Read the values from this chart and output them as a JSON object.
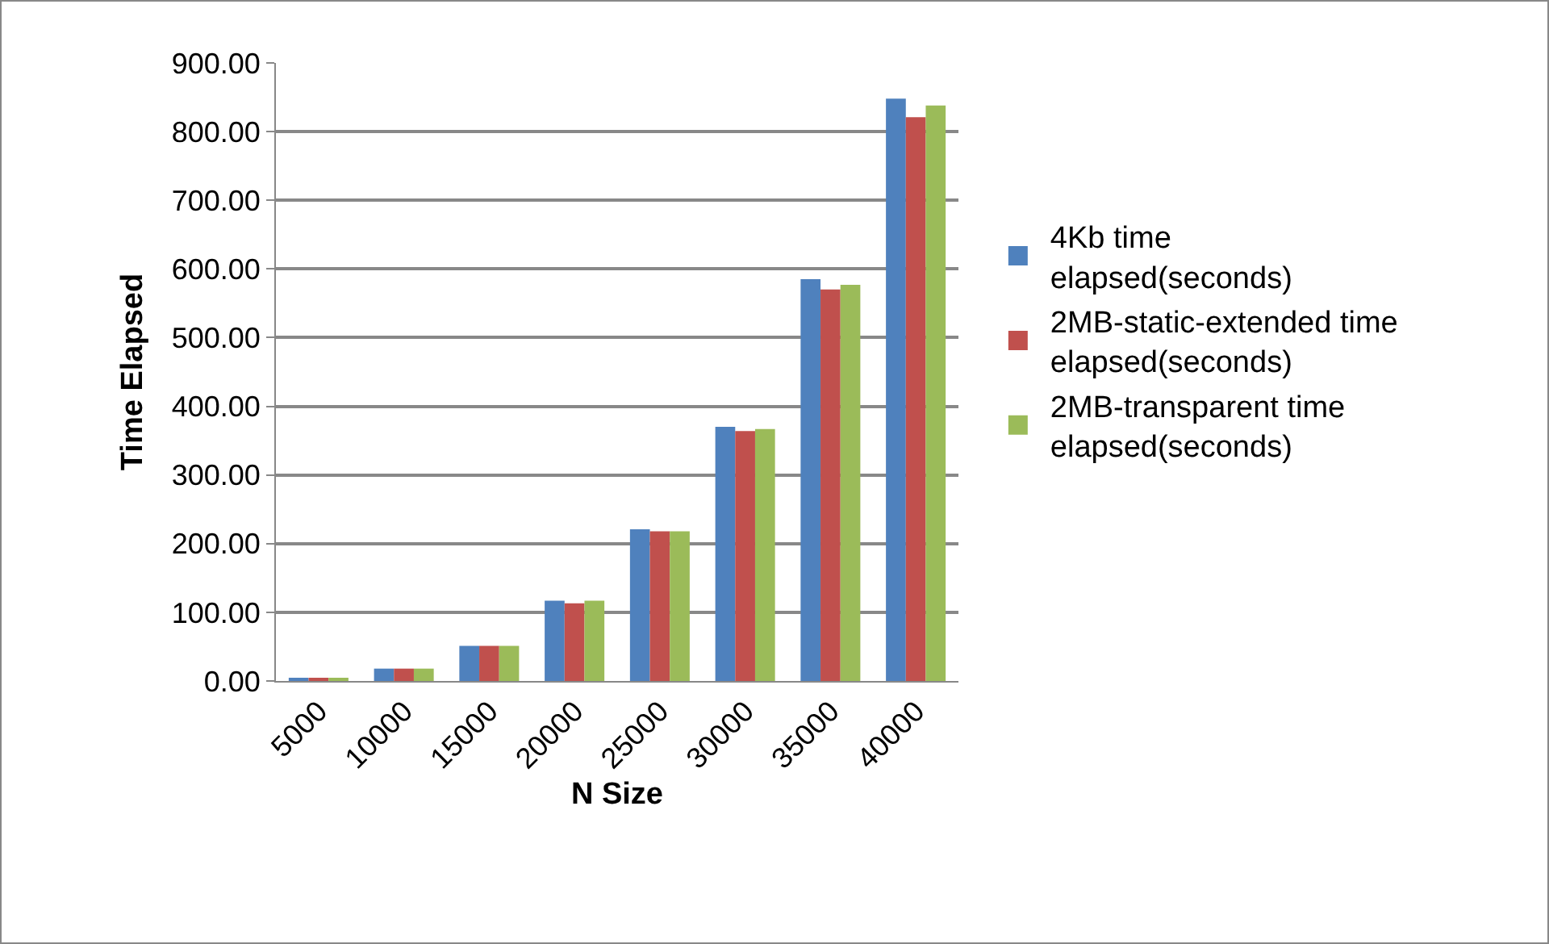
{
  "chart_data": {
    "type": "bar",
    "xlabel": "N Size",
    "ylabel": "Time Elapsed",
    "categories": [
      "5000",
      "10000",
      "15000",
      "20000",
      "25000",
      "30000",
      "35000",
      "40000"
    ],
    "series": [
      {
        "name": "4Kb time elapsed(seconds)",
        "color": "#4f81bd",
        "values": [
          4,
          18,
          51,
          117,
          221,
          370,
          585,
          848
        ]
      },
      {
        "name": "2MB-static-extended time elapsed(seconds)",
        "color": "#c0504d",
        "values": [
          4,
          18,
          51,
          113,
          218,
          364,
          570,
          821
        ]
      },
      {
        "name": "2MB-transparent time elapsed(seconds)",
        "color": "#9bbb59",
        "values": [
          4,
          18,
          51,
          117,
          218,
          367,
          577,
          838
        ]
      }
    ],
    "ylim": [
      0,
      900
    ],
    "yticks": [
      {
        "value": 0,
        "label": "0.00"
      },
      {
        "value": 100,
        "label": "100.00"
      },
      {
        "value": 200,
        "label": "200.00"
      },
      {
        "value": 300,
        "label": "300.00"
      },
      {
        "value": 400,
        "label": "400.00"
      },
      {
        "value": 500,
        "label": "500.00"
      },
      {
        "value": 600,
        "label": "600.00"
      },
      {
        "value": 700,
        "label": "700.00"
      },
      {
        "value": 800,
        "label": "800.00"
      },
      {
        "value": 900,
        "label": "900.00"
      }
    ],
    "grid": "y",
    "legend": "right"
  }
}
